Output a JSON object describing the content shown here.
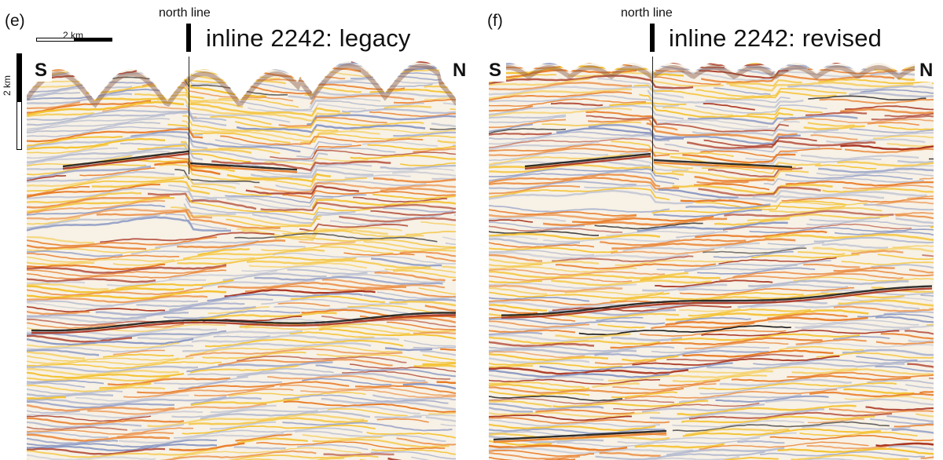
{
  "panels": {
    "left": {
      "letter": "(e)",
      "marker_label": "north line",
      "title": "inline 2242: legacy",
      "south_label": "S",
      "north_label": "N",
      "hscale_label": "2 km",
      "vscale_label": "2 km"
    },
    "right": {
      "letter": "(f)",
      "marker_label": "north line",
      "title": "inline 2242: revised",
      "south_label": "S",
      "north_label": "N"
    }
  },
  "colors": {
    "peak_dark": "#1a1a1a",
    "peak_red": "#a8321e",
    "peak_orange": "#e87a24",
    "peak_yellow": "#f4c232",
    "trough_blue": "#8d9ac4",
    "trough_gray": "#b9bed0",
    "background": "#f7f1e6"
  },
  "icons": {
    "left_scale": "scale-bar",
    "marker": "north-line-marker"
  }
}
